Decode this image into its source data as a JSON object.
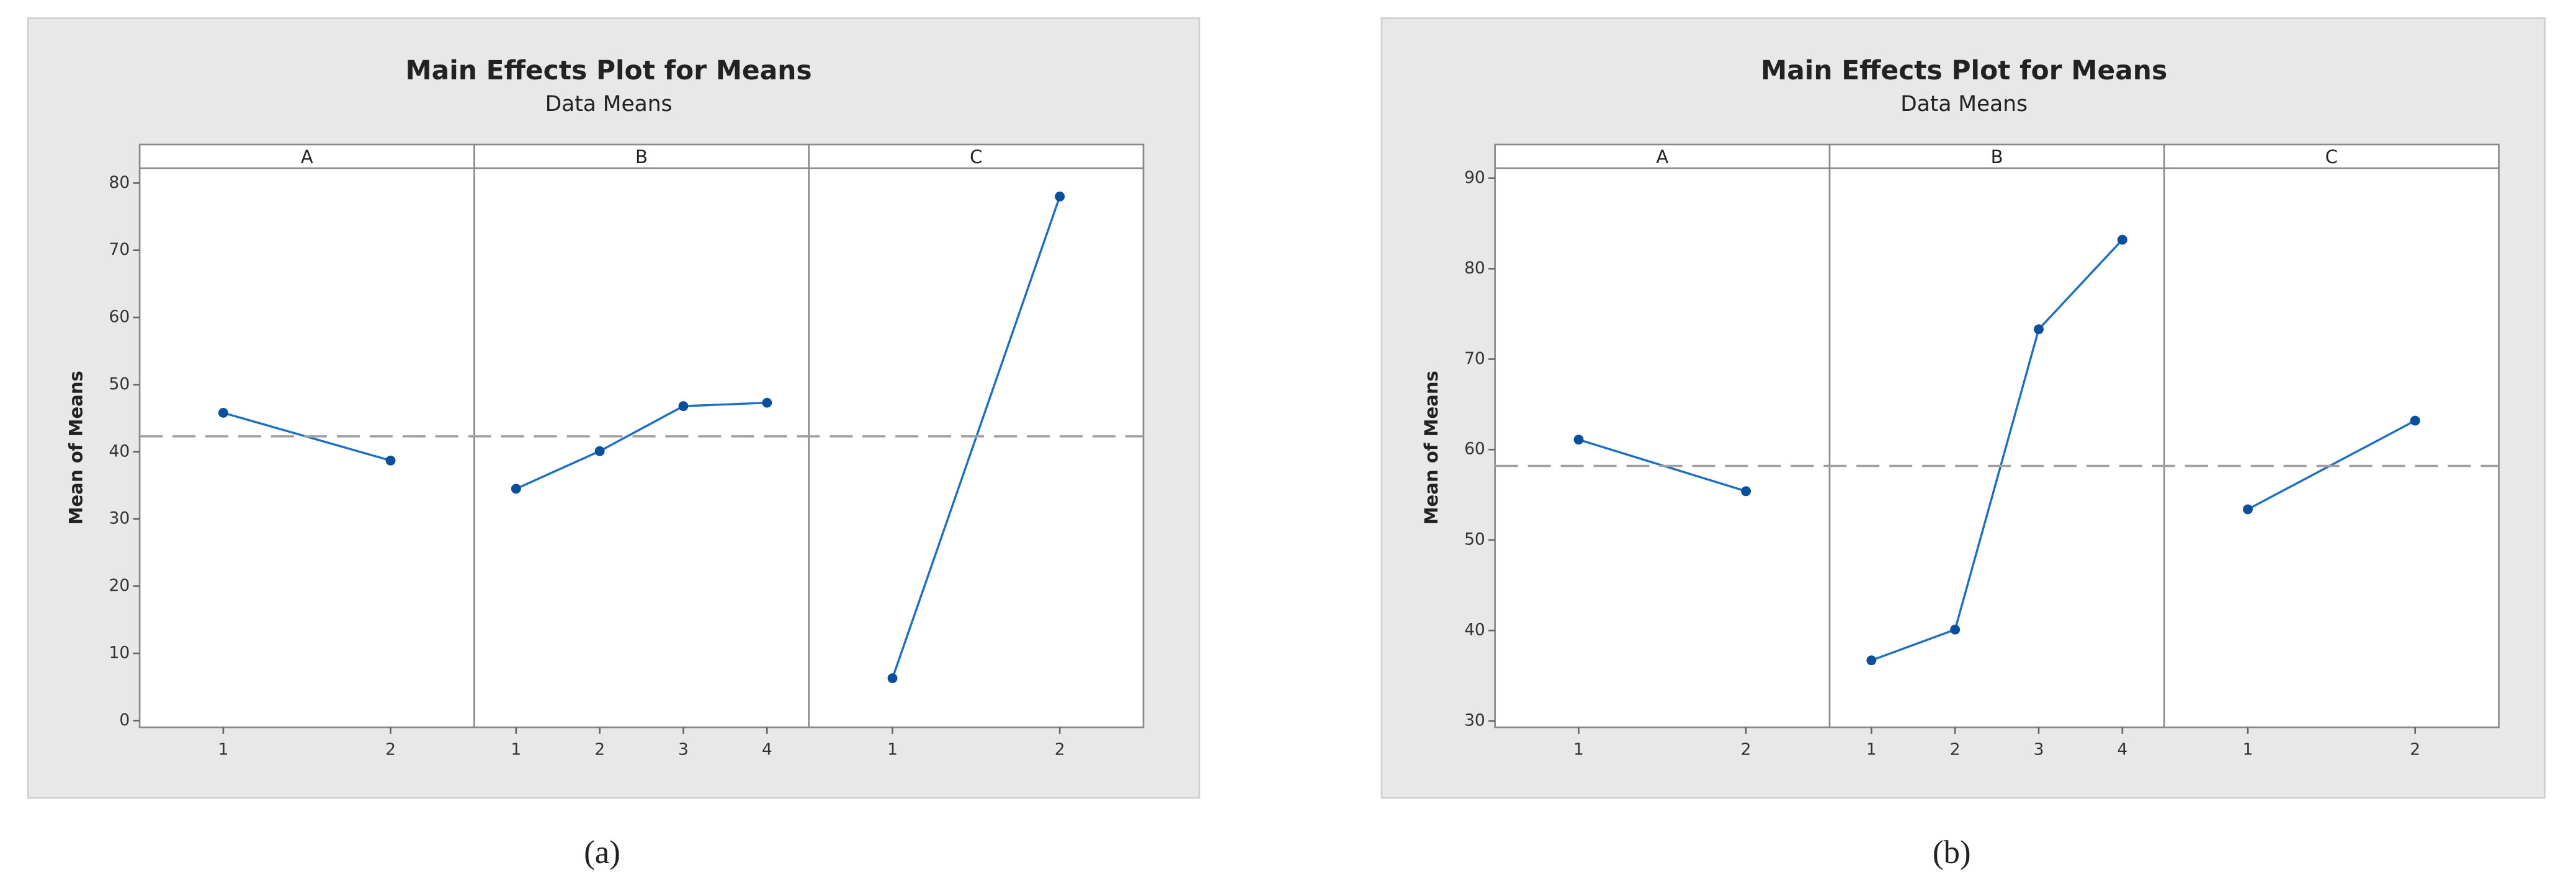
{
  "chart_data": [
    {
      "type": "line",
      "title": "Main Effects Plot for Means",
      "subtitle": "Data Means",
      "ylabel": "Mean of Means",
      "caption": "(a)",
      "color": "#1f6fbf",
      "ylim": [
        -1,
        82.2
      ],
      "yticks": [
        0,
        10,
        20,
        30,
        40,
        50,
        60,
        70,
        80
      ],
      "reference_line": 42.3,
      "panels": [
        {
          "name": "A",
          "categories": [
            "1",
            "2"
          ],
          "values": [
            45.8,
            38.7
          ]
        },
        {
          "name": "B",
          "categories": [
            "1",
            "2",
            "3",
            "4"
          ],
          "values": [
            34.5,
            40.1,
            46.8,
            47.3
          ]
        },
        {
          "name": "C",
          "categories": [
            "1",
            "2"
          ],
          "values": [
            6.3,
            78
          ]
        }
      ]
    },
    {
      "type": "line",
      "title": "Main Effects Plot for Means",
      "subtitle": "Data Means",
      "ylabel": "Mean of Means",
      "caption": "(b)",
      "color": "#1f6fbf",
      "ylim": [
        29.3,
        91.1
      ],
      "yticks": [
        30,
        40,
        50,
        60,
        70,
        80,
        90
      ],
      "reference_line": 58.2,
      "panels": [
        {
          "name": "A",
          "categories": [
            "1",
            "2"
          ],
          "values": [
            61.1,
            55.4
          ]
        },
        {
          "name": "B",
          "categories": [
            "1",
            "2",
            "3",
            "4"
          ],
          "values": [
            36.7,
            40.1,
            73.3,
            83.2
          ]
        },
        {
          "name": "C",
          "categories": [
            "1",
            "2"
          ],
          "values": [
            53.4,
            63.2
          ]
        }
      ]
    }
  ]
}
